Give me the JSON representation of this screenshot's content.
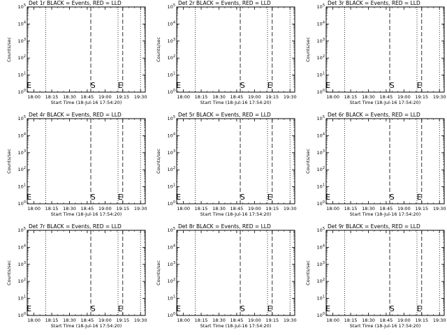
{
  "chart_data": [
    {
      "type": "line",
      "title": "Det 1r BLACK = Events, RED = LLD",
      "xlabel": "Start Time (18-Jul-16 17:54:20)",
      "ylabel": "Counts/sec",
      "x_ticks": [
        "18:00",
        "18:15",
        "18:30",
        "18:45",
        "19:00",
        "19:15",
        "19:30"
      ],
      "y_ticks": [
        "10^0",
        "10^1",
        "10^2",
        "10^3",
        "10^4",
        "10^5"
      ],
      "xlim": [
        "17:54:20",
        "19:34:00"
      ],
      "ylim": [
        1,
        100000
      ],
      "y_scale": "log",
      "grid": false,
      "dotted_lines": [
        "18:10",
        "19:11",
        "19:30"
      ],
      "dashed_lines": [
        "18:48",
        "19:15"
      ],
      "markers": [
        {
          "label": "E",
          "x": "17:55"
        },
        {
          "label": "S",
          "x": "18:49"
        },
        {
          "label": "E",
          "x": "19:12"
        }
      ],
      "series": []
    },
    {
      "type": "line",
      "title": "Det 2r BLACK = Events, RED = LLD",
      "xlabel": "Start Time (18-Jul-16 17:54:20)",
      "ylabel": "Counts/sec",
      "x_ticks": [
        "18:00",
        "18:15",
        "18:30",
        "18:45",
        "19:00",
        "19:15",
        "19:30"
      ],
      "y_ticks": [
        "10^0",
        "10^1",
        "10^2",
        "10^3",
        "10^4",
        "10^5"
      ],
      "xlim": [
        "17:54:20",
        "19:34:00"
      ],
      "ylim": [
        1,
        100000
      ],
      "y_scale": "log",
      "grid": false,
      "dotted_lines": [
        "18:10",
        "19:11",
        "19:30"
      ],
      "dashed_lines": [
        "18:48",
        "19:15"
      ],
      "markers": [
        {
          "label": "E",
          "x": "17:55"
        },
        {
          "label": "S",
          "x": "18:49"
        },
        {
          "label": "E",
          "x": "19:12"
        }
      ],
      "series": []
    },
    {
      "type": "line",
      "title": "Det 3r BLACK = Events, RED = LLD",
      "xlabel": "Start Time (18-Jul-16 17:54:20)",
      "ylabel": "Counts/sec",
      "x_ticks": [
        "18:00",
        "18:15",
        "18:30",
        "18:45",
        "19:00",
        "19:15",
        "19:30"
      ],
      "y_ticks": [
        "10^0",
        "10^1",
        "10^2",
        "10^3",
        "10^4",
        "10^5"
      ],
      "xlim": [
        "17:54:20",
        "19:34:00"
      ],
      "ylim": [
        1,
        100000
      ],
      "y_scale": "log",
      "grid": false,
      "dotted_lines": [
        "18:10",
        "19:11",
        "19:30"
      ],
      "dashed_lines": [
        "18:48",
        "19:15"
      ],
      "markers": [
        {
          "label": "E",
          "x": "17:55"
        },
        {
          "label": "S",
          "x": "18:49"
        },
        {
          "label": "E",
          "x": "19:12"
        }
      ],
      "series": []
    },
    {
      "type": "line",
      "title": "Det 4r BLACK = Events, RED = LLD",
      "xlabel": "Start Time (18-Jul-16 17:54:20)",
      "ylabel": "Counts/sec",
      "x_ticks": [
        "18:00",
        "18:15",
        "18:30",
        "18:45",
        "19:00",
        "19:15",
        "19:30"
      ],
      "y_ticks": [
        "10^0",
        "10^1",
        "10^2",
        "10^3",
        "10^4",
        "10^5"
      ],
      "xlim": [
        "17:54:20",
        "19:34:00"
      ],
      "ylim": [
        1,
        100000
      ],
      "y_scale": "log",
      "grid": false,
      "dotted_lines": [
        "18:10",
        "19:11",
        "19:30"
      ],
      "dashed_lines": [
        "18:48",
        "19:15"
      ],
      "markers": [
        {
          "label": "E",
          "x": "17:55"
        },
        {
          "label": "S",
          "x": "18:49"
        },
        {
          "label": "E",
          "x": "19:12"
        }
      ],
      "series": []
    },
    {
      "type": "line",
      "title": "Det 5r BLACK = Events, RED = LLD",
      "xlabel": "Start Time (18-Jul-16 17:54:20)",
      "ylabel": "Counts/sec",
      "x_ticks": [
        "18:00",
        "18:15",
        "18:30",
        "18:45",
        "19:00",
        "19:15",
        "19:30"
      ],
      "y_ticks": [
        "10^0",
        "10^1",
        "10^2",
        "10^3",
        "10^4",
        "10^5"
      ],
      "xlim": [
        "17:54:20",
        "19:34:00"
      ],
      "ylim": [
        1,
        100000
      ],
      "y_scale": "log",
      "grid": false,
      "dotted_lines": [
        "18:10",
        "19:11",
        "19:30"
      ],
      "dashed_lines": [
        "18:48",
        "19:15"
      ],
      "markers": [
        {
          "label": "E",
          "x": "17:55"
        },
        {
          "label": "S",
          "x": "18:49"
        },
        {
          "label": "E",
          "x": "19:12"
        }
      ],
      "series": []
    },
    {
      "type": "line",
      "title": "Det 6r BLACK = Events, RED = LLD",
      "xlabel": "Start Time (18-Jul-16 17:54:20)",
      "ylabel": "Counts/sec",
      "x_ticks": [
        "18:00",
        "18:15",
        "18:30",
        "18:45",
        "19:00",
        "19:15",
        "19:30"
      ],
      "y_ticks": [
        "10^0",
        "10^1",
        "10^2",
        "10^3",
        "10^4",
        "10^5"
      ],
      "xlim": [
        "17:54:20",
        "19:34:00"
      ],
      "ylim": [
        1,
        100000
      ],
      "y_scale": "log",
      "grid": false,
      "dotted_lines": [
        "18:10",
        "19:11",
        "19:30"
      ],
      "dashed_lines": [
        "18:48",
        "19:15"
      ],
      "markers": [
        {
          "label": "E",
          "x": "17:55"
        },
        {
          "label": "S",
          "x": "18:49"
        },
        {
          "label": "E",
          "x": "19:12"
        }
      ],
      "series": []
    },
    {
      "type": "line",
      "title": "Det 7r BLACK = Events, RED = LLD",
      "xlabel": "Start Time (18-Jul-16 17:54:20)",
      "ylabel": "Counts/sec",
      "x_ticks": [
        "18:00",
        "18:15",
        "18:30",
        "18:45",
        "19:00",
        "19:15",
        "19:30"
      ],
      "y_ticks": [
        "10^0",
        "10^1",
        "10^2",
        "10^3",
        "10^4",
        "10^5"
      ],
      "xlim": [
        "17:54:20",
        "19:34:00"
      ],
      "ylim": [
        1,
        100000
      ],
      "y_scale": "log",
      "grid": false,
      "dotted_lines": [
        "18:10",
        "19:11",
        "19:30"
      ],
      "dashed_lines": [
        "18:48",
        "19:15"
      ],
      "markers": [
        {
          "label": "E",
          "x": "17:55"
        },
        {
          "label": "S",
          "x": "18:49"
        },
        {
          "label": "E",
          "x": "19:12"
        }
      ],
      "series": []
    },
    {
      "type": "line",
      "title": "Det 8r BLACK = Events, RED = LLD",
      "xlabel": "Start Time (18-Jul-16 17:54:20)",
      "ylabel": "Counts/sec",
      "x_ticks": [
        "18:00",
        "18:15",
        "18:30",
        "18:45",
        "19:00",
        "19:15",
        "19:30"
      ],
      "y_ticks": [
        "10^0",
        "10^1",
        "10^2",
        "10^3",
        "10^4",
        "10^5"
      ],
      "xlim": [
        "17:54:20",
        "19:34:00"
      ],
      "ylim": [
        1,
        100000
      ],
      "y_scale": "log",
      "grid": false,
      "dotted_lines": [
        "18:10",
        "19:11",
        "19:30"
      ],
      "dashed_lines": [
        "18:48",
        "19:15"
      ],
      "markers": [
        {
          "label": "E",
          "x": "17:55"
        },
        {
          "label": "S",
          "x": "18:49"
        },
        {
          "label": "E",
          "x": "19:12"
        }
      ],
      "series": []
    },
    {
      "type": "line",
      "title": "Det 9r BLACK = Events, RED = LLD",
      "xlabel": "Start Time (18-Jul-16 17:54:20)",
      "ylabel": "Counts/sec",
      "x_ticks": [
        "18:00",
        "18:15",
        "18:30",
        "18:45",
        "19:00",
        "19:15",
        "19:30"
      ],
      "y_ticks": [
        "10^0",
        "10^1",
        "10^2",
        "10^3",
        "10^4",
        "10^5"
      ],
      "xlim": [
        "17:54:20",
        "19:34:00"
      ],
      "ylim": [
        1,
        100000
      ],
      "y_scale": "log",
      "grid": false,
      "dotted_lines": [
        "18:10",
        "19:11",
        "19:30"
      ],
      "dashed_lines": [
        "18:48",
        "19:15"
      ],
      "markers": [
        {
          "label": "E",
          "x": "17:55"
        },
        {
          "label": "S",
          "x": "18:49"
        },
        {
          "label": "E",
          "x": "19:12"
        }
      ],
      "series": []
    }
  ],
  "colors": {
    "events": "#000000",
    "lld": "#ff0000",
    "background": "#ffffff"
  }
}
